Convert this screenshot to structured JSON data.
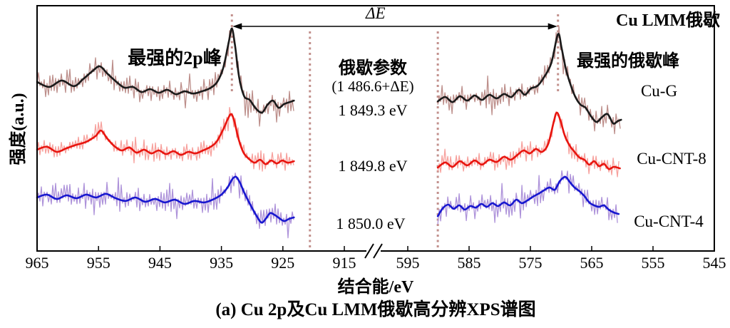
{
  "figure": {
    "y_axis_label": "强度(a.u.)",
    "x_axis_label": "结合能/eV",
    "caption": "(a) Cu 2p及Cu LMM俄歇高分辨XPS谱图"
  },
  "annotations": {
    "strongest_2p_peak": "最强的2p峰",
    "auger_region_title": "Cu LMM俄歇",
    "strongest_auger_peak": "最强的俄歇峰",
    "auger_parameter_title": "俄歇参数",
    "auger_parameter_formula": "(1 486.6+ΔE)",
    "delta_e": "ΔE",
    "auger_values": [
      "1 849.3 eV",
      "1 849.8 eV",
      "1 850.0 eV"
    ]
  },
  "chart_data": {
    "type": "line",
    "title": "(a) Cu 2p及Cu LMM俄歇高分辨XPS谱图",
    "xlabel": "结合能/eV",
    "ylabel": "强度(a.u.)",
    "y_units": "arbitrary (intensity fraction of plot height)",
    "x_axis": {
      "broken": true,
      "left_segment": {
        "label": "Cu 2p",
        "range": [
          965,
          915
        ],
        "ticks": [
          965,
          955,
          945,
          935,
          925,
          915
        ]
      },
      "right_segment": {
        "label": "Cu LMM",
        "range": [
          595,
          545
        ],
        "ticks": [
          595,
          585,
          575,
          565,
          555,
          545
        ]
      }
    },
    "peak_markers_eV": [
      933.3,
      570.5
    ],
    "separators_eV": [
      920.6,
      590.1
    ],
    "delta_e_note": "ΔE measured between strongest 2p peak and strongest Auger peak",
    "auger_parameters": [
      {
        "sample": "Cu-G",
        "value_eV": "1 849.3"
      },
      {
        "sample": "Cu-CNT-8",
        "value_eV": "1 849.8"
      },
      {
        "sample": "Cu-CNT-4",
        "value_eV": "1 850.0"
      }
    ],
    "series": [
      {
        "name": "Cu-G",
        "color": "#1a1a1a",
        "noise_color": "#bd8f8b",
        "noise_amp": 14,
        "cu2p": [
          [
            965,
            0.689
          ],
          [
            963,
            0.669
          ],
          [
            961,
            0.695
          ],
          [
            959,
            0.672
          ],
          [
            957.5,
            0.701
          ],
          [
            956,
            0.733
          ],
          [
            954.8,
            0.753
          ],
          [
            953.6,
            0.724
          ],
          [
            952.2,
            0.692
          ],
          [
            950.8,
            0.666
          ],
          [
            949.4,
            0.669
          ],
          [
            948,
            0.648
          ],
          [
            946.6,
            0.66
          ],
          [
            945.2,
            0.645
          ],
          [
            943.8,
            0.657
          ],
          [
            942.4,
            0.639
          ],
          [
            941,
            0.651
          ],
          [
            939.6,
            0.642
          ],
          [
            938.2,
            0.651
          ],
          [
            936.9,
            0.663
          ],
          [
            935.7,
            0.689
          ],
          [
            934.7,
            0.747
          ],
          [
            933.8,
            0.852
          ],
          [
            933.3,
            0.907
          ],
          [
            932.8,
            0.84
          ],
          [
            932.1,
            0.706
          ],
          [
            931.3,
            0.631
          ],
          [
            930.4,
            0.616
          ],
          [
            929.4,
            0.581
          ],
          [
            928.4,
            0.564
          ],
          [
            927.5,
            0.596
          ],
          [
            926.6,
            0.613
          ],
          [
            925.7,
            0.584
          ],
          [
            924.8,
            0.599
          ],
          [
            923.9,
            0.607
          ],
          [
            923.2,
            0.613
          ]
        ],
        "lmm": [
          [
            590.1,
            0.61
          ],
          [
            588.9,
            0.628
          ],
          [
            587.7,
            0.607
          ],
          [
            586.5,
            0.631
          ],
          [
            585.3,
            0.613
          ],
          [
            584.1,
            0.634
          ],
          [
            582.9,
            0.616
          ],
          [
            581.7,
            0.637
          ],
          [
            580.5,
            0.622
          ],
          [
            579.3,
            0.64
          ],
          [
            578.1,
            0.628
          ],
          [
            576.9,
            0.657
          ],
          [
            575.9,
            0.637
          ],
          [
            574.9,
            0.663
          ],
          [
            573.9,
            0.672
          ],
          [
            572.9,
            0.704
          ],
          [
            571.6,
            0.765
          ],
          [
            570.5,
            0.884
          ],
          [
            569.9,
            0.826
          ],
          [
            569.2,
            0.741
          ],
          [
            568.4,
            0.674
          ],
          [
            567.6,
            0.625
          ],
          [
            566.8,
            0.596
          ],
          [
            566,
            0.584
          ],
          [
            565.1,
            0.549
          ],
          [
            564.2,
            0.526
          ],
          [
            563.3,
            0.546
          ],
          [
            562.4,
            0.558
          ],
          [
            561.5,
            0.52
          ],
          [
            560.8,
            0.529
          ],
          [
            560.2,
            0.535
          ]
        ]
      },
      {
        "name": "Cu-CNT-8",
        "color": "#e8150f",
        "noise_color": "#f7a19d",
        "noise_amp": 12,
        "cu2p": [
          [
            965,
            0.413
          ],
          [
            963.4,
            0.425
          ],
          [
            961.8,
            0.404
          ],
          [
            960.2,
            0.419
          ],
          [
            958.6,
            0.433
          ],
          [
            957,
            0.445
          ],
          [
            955.5,
            0.468
          ],
          [
            954.6,
            0.491
          ],
          [
            953.6,
            0.459
          ],
          [
            952.4,
            0.427
          ],
          [
            951.2,
            0.41
          ],
          [
            950,
            0.422
          ],
          [
            948.8,
            0.401
          ],
          [
            947.6,
            0.413
          ],
          [
            946.4,
            0.398
          ],
          [
            945.2,
            0.41
          ],
          [
            944,
            0.395
          ],
          [
            942.8,
            0.407
          ],
          [
            941.6,
            0.392
          ],
          [
            940.4,
            0.404
          ],
          [
            939.2,
            0.398
          ],
          [
            938,
            0.41
          ],
          [
            936.8,
            0.424
          ],
          [
            935.8,
            0.445
          ],
          [
            934.8,
            0.491
          ],
          [
            933.9,
            0.541
          ],
          [
            933.4,
            0.558
          ],
          [
            932.9,
            0.529
          ],
          [
            932.2,
            0.456
          ],
          [
            931.4,
            0.401
          ],
          [
            930.5,
            0.375
          ],
          [
            929.6,
            0.36
          ],
          [
            928.7,
            0.372
          ],
          [
            927.8,
            0.354
          ],
          [
            926.9,
            0.369
          ],
          [
            926,
            0.357
          ],
          [
            925.1,
            0.369
          ],
          [
            924.2,
            0.36
          ],
          [
            923.2,
            0.366
          ]
        ],
        "lmm": [
          [
            590.1,
            0.34
          ],
          [
            588.9,
            0.361
          ],
          [
            587.7,
            0.343
          ],
          [
            586.5,
            0.366
          ],
          [
            585.3,
            0.349
          ],
          [
            584.1,
            0.369
          ],
          [
            582.9,
            0.352
          ],
          [
            581.7,
            0.372
          ],
          [
            580.5,
            0.363
          ],
          [
            579.3,
            0.384
          ],
          [
            578.2,
            0.372
          ],
          [
            577.1,
            0.392
          ],
          [
            576.1,
            0.41
          ],
          [
            575.1,
            0.398
          ],
          [
            574.1,
            0.416
          ],
          [
            573.1,
            0.404
          ],
          [
            572.1,
            0.436
          ],
          [
            571.2,
            0.526
          ],
          [
            570.7,
            0.564
          ],
          [
            570.1,
            0.532
          ],
          [
            569.4,
            0.471
          ],
          [
            568.6,
            0.43
          ],
          [
            567.8,
            0.404
          ],
          [
            567,
            0.381
          ],
          [
            566.2,
            0.372
          ],
          [
            565.4,
            0.352
          ],
          [
            564.6,
            0.366
          ],
          [
            563.8,
            0.346
          ],
          [
            563,
            0.355
          ],
          [
            562.2,
            0.334
          ],
          [
            561.4,
            0.343
          ],
          [
            560.4,
            0.337
          ]
        ],
        "label": "Cu-CNT-8"
      },
      {
        "name": "Cu-CNT-4",
        "color": "#1717cf",
        "noise_color": "#ae93da",
        "noise_amp": 15,
        "cu2p": [
          [
            965,
            0.218
          ],
          [
            963.4,
            0.23
          ],
          [
            961.8,
            0.212
          ],
          [
            960.2,
            0.227
          ],
          [
            958.6,
            0.215
          ],
          [
            957,
            0.23
          ],
          [
            955.4,
            0.218
          ],
          [
            953.8,
            0.233
          ],
          [
            952.2,
            0.215
          ],
          [
            950.6,
            0.204
          ],
          [
            949,
            0.218
          ],
          [
            947.4,
            0.201
          ],
          [
            945.8,
            0.212
          ],
          [
            944.2,
            0.198
          ],
          [
            942.6,
            0.209
          ],
          [
            941,
            0.192
          ],
          [
            939.4,
            0.204
          ],
          [
            937.8,
            0.198
          ],
          [
            936.2,
            0.212
          ],
          [
            935,
            0.23
          ],
          [
            934,
            0.259
          ],
          [
            933.2,
            0.294
          ],
          [
            932.6,
            0.302
          ],
          [
            932,
            0.279
          ],
          [
            931.2,
            0.233
          ],
          [
            930.3,
            0.189
          ],
          [
            929.4,
            0.148
          ],
          [
            928.5,
            0.116
          ],
          [
            927.8,
            0.131
          ],
          [
            927.1,
            0.154
          ],
          [
            926.4,
            0.148
          ],
          [
            925.6,
            0.134
          ],
          [
            924.8,
            0.122
          ],
          [
            924,
            0.131
          ],
          [
            923.2,
            0.137
          ]
        ],
        "lmm": [
          [
            590.1,
            0.142
          ],
          [
            589.3,
            0.174
          ],
          [
            588.4,
            0.189
          ],
          [
            587.5,
            0.172
          ],
          [
            586.6,
            0.186
          ],
          [
            585.7,
            0.169
          ],
          [
            584.8,
            0.183
          ],
          [
            583.9,
            0.177
          ],
          [
            583,
            0.192
          ],
          [
            582.1,
            0.18
          ],
          [
            581.2,
            0.195
          ],
          [
            580.3,
            0.183
          ],
          [
            579.3,
            0.198
          ],
          [
            578.3,
            0.186
          ],
          [
            577.3,
            0.209
          ],
          [
            576.4,
            0.195
          ],
          [
            575.5,
            0.206
          ],
          [
            574.6,
            0.221
          ],
          [
            573.7,
            0.233
          ],
          [
            572.8,
            0.247
          ],
          [
            571.9,
            0.259
          ],
          [
            571,
            0.25
          ],
          [
            570.2,
            0.285
          ],
          [
            569.3,
            0.302
          ],
          [
            568.6,
            0.282
          ],
          [
            567.8,
            0.259
          ],
          [
            567,
            0.244
          ],
          [
            566.2,
            0.224
          ],
          [
            565.4,
            0.198
          ],
          [
            564.6,
            0.186
          ],
          [
            563.8,
            0.18
          ],
          [
            563,
            0.186
          ],
          [
            562.2,
            0.168
          ],
          [
            561.4,
            0.157
          ],
          [
            560.6,
            0.151
          ]
        ]
      }
    ]
  }
}
